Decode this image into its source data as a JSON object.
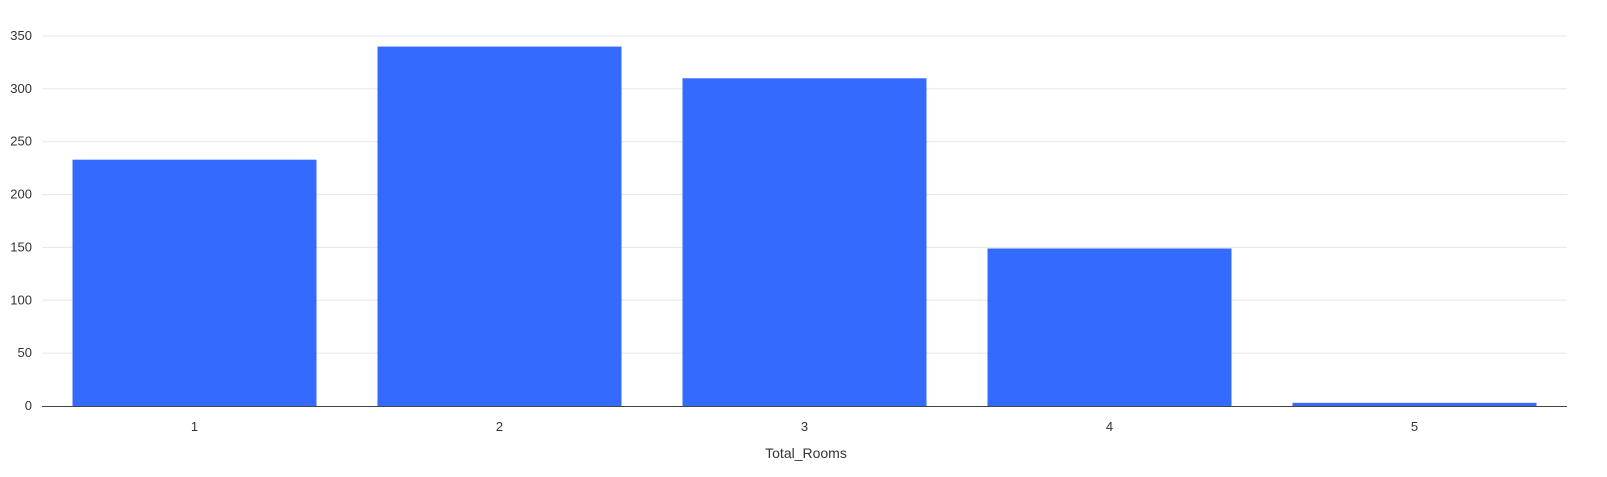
{
  "chart_data": {
    "type": "bar",
    "categories": [
      "1",
      "2",
      "3",
      "4",
      "5"
    ],
    "values": [
      233,
      340,
      310,
      149,
      3
    ],
    "xlabel": "Total_Rooms",
    "ylabel": "",
    "ylim": [
      0,
      350
    ],
    "yticks": [
      0,
      50,
      100,
      150,
      200,
      250,
      300,
      350
    ],
    "grid": true,
    "legend": "none",
    "bar_color": "#356AFF"
  }
}
